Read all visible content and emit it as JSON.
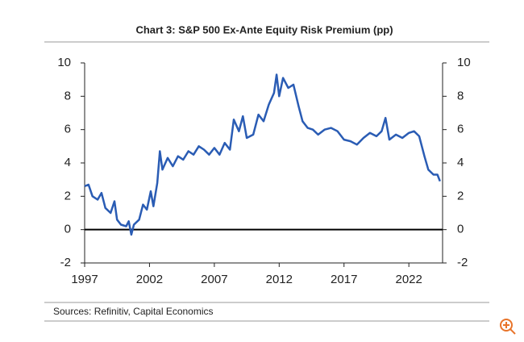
{
  "chart_data": {
    "type": "line",
    "title": "Chart 3: S&P 500 Ex-Ante Equity Risk Premium (pp)",
    "source": "Sources: Refinitiv, Capital Economics",
    "color": "#2a5cb4",
    "x": [
      1997.0,
      1997.3,
      1997.6,
      1998.0,
      1998.3,
      1998.6,
      1999.0,
      1999.3,
      1999.5,
      1999.8,
      2000.2,
      2000.4,
      2000.6,
      2000.8,
      2001.2,
      2001.5,
      2001.8,
      2002.1,
      2002.3,
      2002.6,
      2002.8,
      2003.0,
      2003.4,
      2003.8,
      2004.2,
      2004.6,
      2005.0,
      2005.4,
      2005.8,
      2006.2,
      2006.6,
      2007.0,
      2007.4,
      2007.8,
      2008.2,
      2008.5,
      2008.9,
      2009.2,
      2009.5,
      2010.0,
      2010.4,
      2010.8,
      2011.2,
      2011.6,
      2011.8,
      2012.0,
      2012.3,
      2012.7,
      2013.1,
      2013.5,
      2013.8,
      2014.2,
      2014.6,
      2015.0,
      2015.5,
      2016.0,
      2016.5,
      2017.0,
      2017.5,
      2018.0,
      2018.5,
      2019.0,
      2019.5,
      2019.9,
      2020.2,
      2020.5,
      2021.0,
      2021.5,
      2022.0,
      2022.4,
      2022.8,
      2023.2,
      2023.5,
      2023.9,
      2024.2,
      2024.4
    ],
    "values": [
      2.6,
      2.7,
      2.0,
      1.8,
      2.2,
      1.3,
      1.0,
      1.7,
      0.6,
      0.3,
      0.2,
      0.5,
      -0.3,
      0.3,
      0.6,
      1.5,
      1.2,
      2.3,
      1.4,
      2.8,
      4.7,
      3.6,
      4.3,
      3.8,
      4.4,
      4.2,
      4.7,
      4.5,
      5.0,
      4.8,
      4.5,
      4.9,
      4.5,
      5.2,
      4.8,
      6.6,
      5.9,
      6.8,
      5.5,
      5.7,
      6.9,
      6.5,
      7.5,
      8.2,
      9.3,
      8.0,
      9.1,
      8.5,
      8.7,
      7.4,
      6.5,
      6.1,
      6.0,
      5.7,
      6.0,
      6.1,
      5.9,
      5.4,
      5.3,
      5.1,
      5.5,
      5.8,
      5.6,
      5.9,
      6.7,
      5.4,
      5.7,
      5.5,
      5.8,
      5.9,
      5.6,
      4.4,
      3.6,
      3.3,
      3.3,
      2.9
    ],
    "xlim": [
      1997,
      2024.6
    ],
    "xticks": [
      1997,
      2002,
      2007,
      2012,
      2017,
      2022
    ],
    "ylim": [
      -2,
      10
    ],
    "yticks": [
      -2,
      0,
      2,
      4,
      6,
      8,
      10
    ],
    "y2lim": [
      -2,
      10
    ],
    "y2ticks": [
      -2,
      0,
      2,
      4,
      6,
      8,
      10
    ]
  }
}
